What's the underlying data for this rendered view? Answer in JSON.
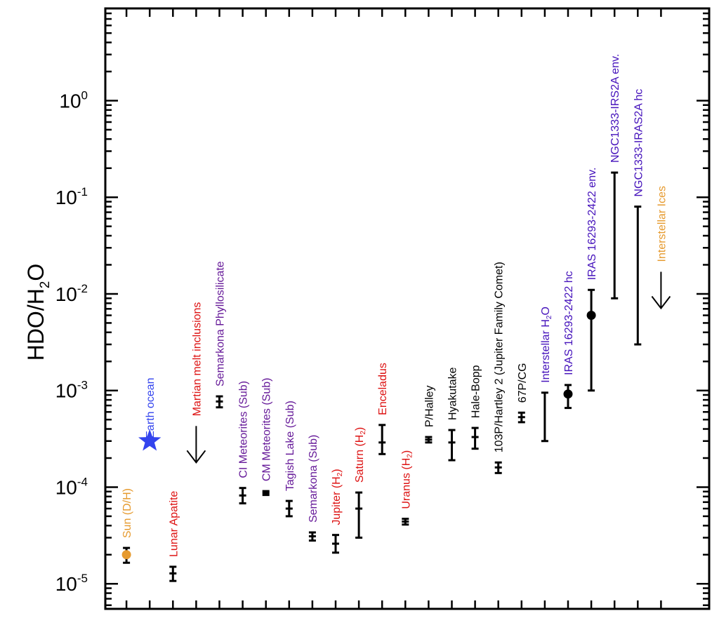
{
  "chart_data": {
    "type": "scatter",
    "title": "",
    "xlabel": "",
    "ylabel": {
      "main": "HDO/H",
      "sub": "2",
      "tail": "O"
    },
    "yscale": "log",
    "ylim": [
      5.5e-06,
      9
    ],
    "xlim": [
      0,
      26
    ],
    "yticks": [
      {
        "base": "10",
        "exp": "0",
        "value": 1
      },
      {
        "base": "10",
        "exp": "-1",
        "value": 0.1
      },
      {
        "base": "10",
        "exp": "-2",
        "value": 0.01
      },
      {
        "base": "10",
        "exp": "-3",
        "value": 0.001
      },
      {
        "base": "10",
        "exp": "-4",
        "value": 0.0001
      },
      {
        "base": "10",
        "exp": "-5",
        "value": 1e-05
      }
    ],
    "grid": false,
    "legend": "none",
    "colors": {
      "sun": "#e69a2e",
      "earth": "#3344ee",
      "planetary": "#dd1111",
      "meteorite": "#661a99",
      "comet": "#000000",
      "protostar": "#4411bb",
      "ice": "#e69a2e"
    },
    "points": [
      {
        "label": "Sun (D/H)",
        "sub": "",
        "tail": "",
        "x": 1,
        "y": 2e-05,
        "yerr": [
          1.65e-05,
          2.35e-05
        ],
        "color_key": "sun",
        "marker": "circle"
      },
      {
        "label": "Earth ocean",
        "sub": "",
        "tail": "",
        "x": 2,
        "y": 0.0003,
        "yerr": null,
        "color_key": "earth",
        "marker": "star"
      },
      {
        "label": "Lunar Apatite",
        "sub": "",
        "tail": "",
        "x": 3,
        "y": 1.28e-05,
        "yerr": [
          1.07e-05,
          1.5e-05
        ],
        "color_key": "planetary",
        "marker": "bar"
      },
      {
        "label": "Martian melt inclusions",
        "sub": "",
        "tail": "",
        "x": 4,
        "y": 0.00018,
        "yerr": null,
        "color_key": "planetary",
        "marker": "upper-limit"
      },
      {
        "label": "Semarkona Phyllosilicate",
        "sub": "",
        "tail": "",
        "x": 5,
        "y": 0.00077,
        "yerr": [
          0.00067,
          0.00087
        ],
        "color_key": "meteorite",
        "marker": "bar"
      },
      {
        "label": "CI Meteorites (Sub)",
        "sub": "",
        "tail": "",
        "x": 6,
        "y": 8.2e-05,
        "yerr": [
          6.8e-05,
          9.8e-05
        ],
        "color_key": "meteorite",
        "marker": "bar"
      },
      {
        "label": "CM Meteorites (Sub)",
        "sub": "",
        "tail": "",
        "x": 7,
        "y": 8.7e-05,
        "yerr": [
          8.3e-05,
          9.1e-05
        ],
        "color_key": "meteorite",
        "marker": "bar"
      },
      {
        "label": "Tagish Lake (Sub)",
        "sub": "",
        "tail": "",
        "x": 8,
        "y": 6e-05,
        "yerr": [
          5e-05,
          7.2e-05
        ],
        "color_key": "meteorite",
        "marker": "bar"
      },
      {
        "label": "Semarkona (Sub)",
        "sub": "",
        "tail": "",
        "x": 9,
        "y": 3.1e-05,
        "yerr": [
          2.8e-05,
          3.4e-05
        ],
        "color_key": "meteorite",
        "marker": "bar"
      },
      {
        "label": "Jupiter (H",
        "sub": "2",
        "tail": ")",
        "x": 10,
        "y": 2.6e-05,
        "yerr": [
          2.1e-05,
          3.2e-05
        ],
        "color_key": "planetary",
        "marker": "bar"
      },
      {
        "label": "Saturn (H",
        "sub": "2",
        "tail": ")",
        "x": 11,
        "y": 6e-05,
        "yerr": [
          3e-05,
          8.8e-05
        ],
        "color_key": "planetary",
        "marker": "bar"
      },
      {
        "label": "Enceladus",
        "sub": "",
        "tail": "",
        "x": 12,
        "y": 0.00029,
        "yerr": [
          0.00022,
          0.00044
        ],
        "color_key": "planetary",
        "marker": "bar"
      },
      {
        "label": "Uranus (H",
        "sub": "2",
        "tail": ")",
        "x": 13,
        "y": 4.4e-05,
        "yerr": [
          4.1e-05,
          4.7e-05
        ],
        "color_key": "planetary",
        "marker": "bar"
      },
      {
        "label": "P/Halley",
        "sub": "",
        "tail": "",
        "x": 14,
        "y": 0.00031,
        "yerr": [
          0.00029,
          0.00033
        ],
        "color_key": "comet",
        "marker": "bar"
      },
      {
        "label": "Hyakutake",
        "sub": "",
        "tail": "",
        "x": 15,
        "y": 0.00029,
        "yerr": [
          0.00019,
          0.00039
        ],
        "color_key": "comet",
        "marker": "bar"
      },
      {
        "label": "Hale-Bopp",
        "sub": "",
        "tail": "",
        "x": 16,
        "y": 0.00033,
        "yerr": [
          0.00025,
          0.00041
        ],
        "color_key": "comet",
        "marker": "bar"
      },
      {
        "label": "103P/Hartley 2 (Jupiter Family Comet)",
        "sub": "",
        "tail": "",
        "x": 17,
        "y": 0.00016,
        "yerr": [
          0.00014,
          0.00018
        ],
        "color_key": "comet",
        "marker": "bar"
      },
      {
        "label": "67P/CG",
        "sub": "",
        "tail": "",
        "x": 18,
        "y": 0.00053,
        "yerr": [
          0.00047,
          0.00059
        ],
        "color_key": "comet",
        "marker": "bar"
      },
      {
        "label": "Interstellar H",
        "sub": "2",
        "tail": "O",
        "x": 19,
        "y": null,
        "yerr": [
          0.0003,
          0.00095
        ],
        "color_key": "protostar",
        "marker": "range"
      },
      {
        "label": "IRAS 16293-2422 hc",
        "sub": "",
        "tail": "",
        "x": 20,
        "y": 0.00092,
        "yerr": [
          0.00066,
          0.00114
        ],
        "color_key": "protostar",
        "marker": "dot"
      },
      {
        "label": "IRAS 16293-2422 env.",
        "sub": "",
        "tail": "",
        "x": 21,
        "y": 0.006,
        "yerr": [
          0.001,
          0.011
        ],
        "color_key": "protostar",
        "marker": "dot"
      },
      {
        "label": "NGC1333-IRS2A env.",
        "sub": "",
        "tail": "",
        "x": 22,
        "y": null,
        "yerr": [
          0.009,
          0.18
        ],
        "color_key": "protostar",
        "marker": "range"
      },
      {
        "label": "NGC1333-IRAS2A hc",
        "sub": "",
        "tail": "",
        "x": 23,
        "y": null,
        "yerr": [
          0.003,
          0.08
        ],
        "color_key": "protostar",
        "marker": "range"
      },
      {
        "label": "Interstellar Ices",
        "sub": "",
        "tail": "",
        "x": 24,
        "y": 0.0071,
        "yerr": null,
        "color_key": "ice",
        "marker": "upper-limit"
      }
    ]
  }
}
